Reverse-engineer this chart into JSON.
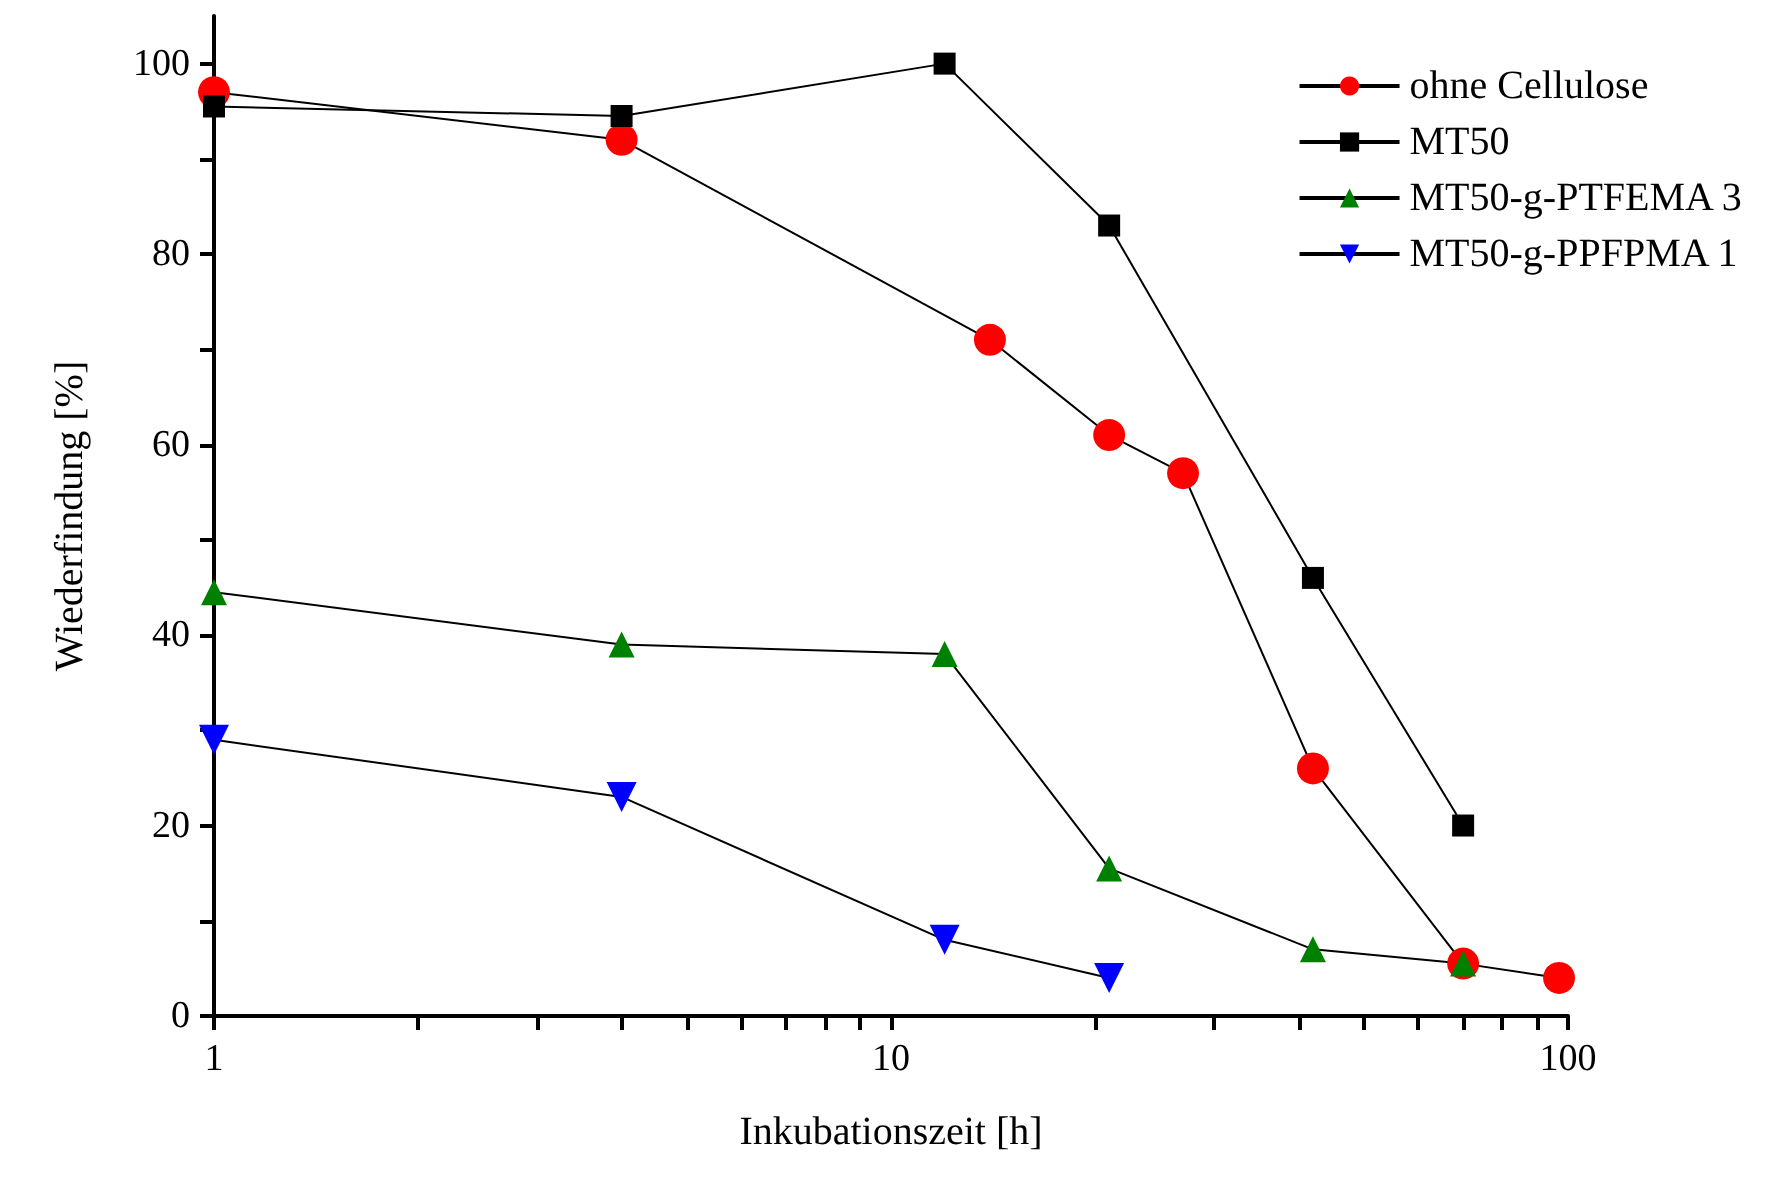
{
  "chart_data": {
    "type": "line",
    "xlabel": "Inkubationszeit [h]",
    "ylabel": "Wiederfindung [%]",
    "log": "x",
    "grid": false,
    "legend": "top right",
    "line_style": "solid",
    "xlim": [
      1,
      100
    ],
    "xticks": [
      1,
      {
        "value": 2,
        "label": null
      },
      {
        "value": 3,
        "label": null
      },
      {
        "value": 4,
        "label": null
      },
      {
        "value": 5,
        "label": null
      },
      {
        "value": 6,
        "label": null
      },
      {
        "value": 7,
        "label": null
      },
      {
        "value": 8,
        "label": null
      },
      {
        "value": 9,
        "label": null
      },
      10,
      {
        "value": 20,
        "label": null
      },
      {
        "value": 30,
        "label": null
      },
      {
        "value": 40,
        "label": null
      },
      {
        "value": 50,
        "label": null
      },
      {
        "value": 60,
        "label": null
      },
      {
        "value": 70,
        "label": null
      },
      {
        "value": 80,
        "label": null
      },
      {
        "value": 90,
        "label": null
      },
      100
    ],
    "ylim": [
      0,
      105
    ],
    "yticks": [
      0,
      {
        "value": 10,
        "label": null
      },
      20,
      {
        "value": 30,
        "label": null
      },
      40,
      {
        "value": 50,
        "label": null
      },
      60,
      {
        "value": 70,
        "label": null
      },
      80,
      {
        "value": 90,
        "label": null
      },
      100
    ],
    "series": [
      {
        "name": "ohne Cellulose",
        "color": "#ff0000",
        "marker": "circle",
        "x": [
          1,
          4,
          14,
          21,
          27,
          42,
          70,
          97
        ],
        "values": [
          97,
          92,
          71,
          61,
          57,
          26,
          5.5,
          4
        ]
      },
      {
        "name": "MT50",
        "color": "#000000",
        "marker": "square",
        "x": [
          1,
          4,
          12,
          21,
          42,
          70
        ],
        "values": [
          95.5,
          94.5,
          100,
          83,
          46,
          20
        ]
      },
      {
        "name": "MT50-g-PTFEMA 3",
        "color": "#008000",
        "marker": "triangle",
        "x": [
          1,
          4,
          12,
          21,
          42,
          70
        ],
        "values": [
          44.5,
          39,
          38,
          15.5,
          7,
          5.5
        ]
      },
      {
        "name": "MT50-g-PPFPMA 1",
        "color": "#0000ff",
        "marker": "triangle-down",
        "x": [
          1,
          4,
          12,
          21
        ],
        "values": [
          29,
          23,
          8,
          4
        ]
      }
    ]
  }
}
